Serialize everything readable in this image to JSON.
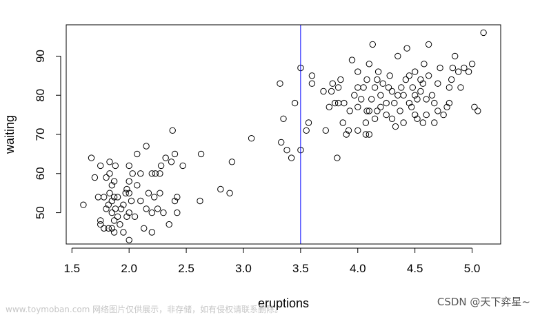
{
  "chart_data": {
    "type": "scatter",
    "title": "",
    "xlabel": "eruptions",
    "ylabel": "waiting",
    "xlim": [
      1.45,
      5.25
    ],
    "ylim": [
      42,
      98
    ],
    "xticks": [
      1.5,
      2.0,
      2.5,
      3.0,
      3.5,
      4.0,
      4.5,
      5.0
    ],
    "xtick_labels": [
      "1.5",
      "2.0",
      "2.5",
      "3.0",
      "3.5",
      "4.0",
      "4.5",
      "5.0"
    ],
    "yticks": [
      50,
      60,
      70,
      80,
      90
    ],
    "ytick_labels": [
      "50",
      "60",
      "70",
      "80",
      "90"
    ],
    "grid": false,
    "legend": "none",
    "vline": {
      "x": 3.5,
      "color": "#0000ff"
    },
    "point_color": "#000000",
    "points": [
      [
        1.6,
        52
      ],
      [
        1.67,
        64
      ],
      [
        1.7,
        59
      ],
      [
        1.73,
        54
      ],
      [
        1.75,
        48
      ],
      [
        1.75,
        47
      ],
      [
        1.75,
        62
      ],
      [
        1.78,
        46
      ],
      [
        1.78,
        54
      ],
      [
        1.8,
        51
      ],
      [
        1.8,
        59
      ],
      [
        1.82,
        46
      ],
      [
        1.82,
        52
      ],
      [
        1.83,
        55
      ],
      [
        1.83,
        60
      ],
      [
        1.83,
        63
      ],
      [
        1.85,
        46
      ],
      [
        1.85,
        50
      ],
      [
        1.85,
        53
      ],
      [
        1.85,
        57
      ],
      [
        1.87,
        45
      ],
      [
        1.87,
        48
      ],
      [
        1.87,
        54
      ],
      [
        1.87,
        58
      ],
      [
        1.88,
        51
      ],
      [
        1.88,
        62
      ],
      [
        1.9,
        49
      ],
      [
        1.9,
        54
      ],
      [
        1.92,
        47
      ],
      [
        1.93,
        51
      ],
      [
        1.95,
        45
      ],
      [
        1.95,
        52
      ],
      [
        1.97,
        55
      ],
      [
        1.98,
        49
      ],
      [
        1.98,
        56
      ],
      [
        2.0,
        43
      ],
      [
        2.0,
        50
      ],
      [
        2.0,
        55
      ],
      [
        2.0,
        58
      ],
      [
        2.0,
        62
      ],
      [
        2.02,
        53
      ],
      [
        2.03,
        60
      ],
      [
        2.05,
        49
      ],
      [
        2.07,
        57
      ],
      [
        2.07,
        65
      ],
      [
        2.1,
        53
      ],
      [
        2.1,
        60
      ],
      [
        2.13,
        46
      ],
      [
        2.15,
        51
      ],
      [
        2.15,
        67
      ],
      [
        2.17,
        55
      ],
      [
        2.2,
        45
      ],
      [
        2.2,
        50
      ],
      [
        2.2,
        60
      ],
      [
        2.22,
        54
      ],
      [
        2.23,
        60
      ],
      [
        2.25,
        51
      ],
      [
        2.27,
        55
      ],
      [
        2.27,
        60
      ],
      [
        2.28,
        62
      ],
      [
        2.3,
        50
      ],
      [
        2.32,
        64
      ],
      [
        2.35,
        47
      ],
      [
        2.37,
        63
      ],
      [
        2.38,
        71
      ],
      [
        2.4,
        53
      ],
      [
        2.4,
        65
      ],
      [
        2.42,
        50
      ],
      [
        2.42,
        54
      ],
      [
        2.47,
        62
      ],
      [
        2.62,
        53
      ],
      [
        2.63,
        65
      ],
      [
        2.8,
        56
      ],
      [
        2.88,
        55
      ],
      [
        2.9,
        63
      ],
      [
        3.07,
        69
      ],
      [
        3.32,
        83
      ],
      [
        3.33,
        68
      ],
      [
        3.35,
        74
      ],
      [
        3.38,
        66
      ],
      [
        3.42,
        64
      ],
      [
        3.45,
        78
      ],
      [
        3.5,
        66
      ],
      [
        3.5,
        87
      ],
      [
        3.55,
        71
      ],
      [
        3.57,
        73
      ],
      [
        3.6,
        83
      ],
      [
        3.6,
        85
      ],
      [
        3.7,
        81
      ],
      [
        3.72,
        71
      ],
      [
        3.75,
        77
      ],
      [
        3.77,
        81
      ],
      [
        3.78,
        83
      ],
      [
        3.8,
        78
      ],
      [
        3.82,
        64
      ],
      [
        3.83,
        78
      ],
      [
        3.83,
        82
      ],
      [
        3.85,
        84
      ],
      [
        3.87,
        73
      ],
      [
        3.88,
        78
      ],
      [
        3.9,
        70
      ],
      [
        3.92,
        71
      ],
      [
        3.93,
        76
      ],
      [
        3.95,
        89
      ],
      [
        3.97,
        80
      ],
      [
        4.0,
        71
      ],
      [
        4.0,
        77
      ],
      [
        4.0,
        82
      ],
      [
        4.0,
        86
      ],
      [
        4.03,
        79
      ],
      [
        4.05,
        82
      ],
      [
        4.07,
        70
      ],
      [
        4.07,
        73
      ],
      [
        4.08,
        76
      ],
      [
        4.08,
        84
      ],
      [
        4.1,
        70
      ],
      [
        4.1,
        76
      ],
      [
        4.1,
        88
      ],
      [
        4.12,
        79
      ],
      [
        4.13,
        93
      ],
      [
        4.15,
        74
      ],
      [
        4.15,
        82
      ],
      [
        4.17,
        76
      ],
      [
        4.17,
        84
      ],
      [
        4.18,
        86
      ],
      [
        4.2,
        77
      ],
      [
        4.2,
        80
      ],
      [
        4.22,
        83
      ],
      [
        4.25,
        75
      ],
      [
        4.25,
        78
      ],
      [
        4.27,
        82
      ],
      [
        4.28,
        85
      ],
      [
        4.3,
        74
      ],
      [
        4.3,
        81
      ],
      [
        4.32,
        78
      ],
      [
        4.33,
        72
      ],
      [
        4.35,
        80
      ],
      [
        4.35,
        90
      ],
      [
        4.37,
        76
      ],
      [
        4.38,
        82
      ],
      [
        4.4,
        73
      ],
      [
        4.4,
        80
      ],
      [
        4.42,
        84
      ],
      [
        4.43,
        92
      ],
      [
        4.45,
        78
      ],
      [
        4.45,
        85
      ],
      [
        4.47,
        77
      ],
      [
        4.48,
        82
      ],
      [
        4.5,
        75
      ],
      [
        4.5,
        80
      ],
      [
        4.5,
        86
      ],
      [
        4.52,
        74
      ],
      [
        4.52,
        79
      ],
      [
        4.55,
        81
      ],
      [
        4.55,
        84
      ],
      [
        4.57,
        73
      ],
      [
        4.57,
        83
      ],
      [
        4.58,
        88
      ],
      [
        4.6,
        75
      ],
      [
        4.6,
        79
      ],
      [
        4.62,
        85
      ],
      [
        4.62,
        93
      ],
      [
        4.65,
        80
      ],
      [
        4.67,
        73
      ],
      [
        4.67,
        78
      ],
      [
        4.7,
        76
      ],
      [
        4.7,
        83
      ],
      [
        4.72,
        87
      ],
      [
        4.75,
        75
      ],
      [
        4.78,
        77
      ],
      [
        4.8,
        78
      ],
      [
        4.8,
        82
      ],
      [
        4.82,
        84
      ],
      [
        4.83,
        87
      ],
      [
        4.85,
        90
      ],
      [
        4.88,
        86
      ],
      [
        4.9,
        82
      ],
      [
        4.93,
        87
      ],
      [
        4.97,
        86
      ],
      [
        5.0,
        88
      ],
      [
        5.02,
        77
      ],
      [
        5.05,
        76
      ],
      [
        5.1,
        96
      ]
    ]
  },
  "watermark": {
    "left": "www.toymoban.com 网络图片仅供展示，非存储，如有侵权请联系删除。",
    "right": "CSDN @天下弈星~"
  }
}
